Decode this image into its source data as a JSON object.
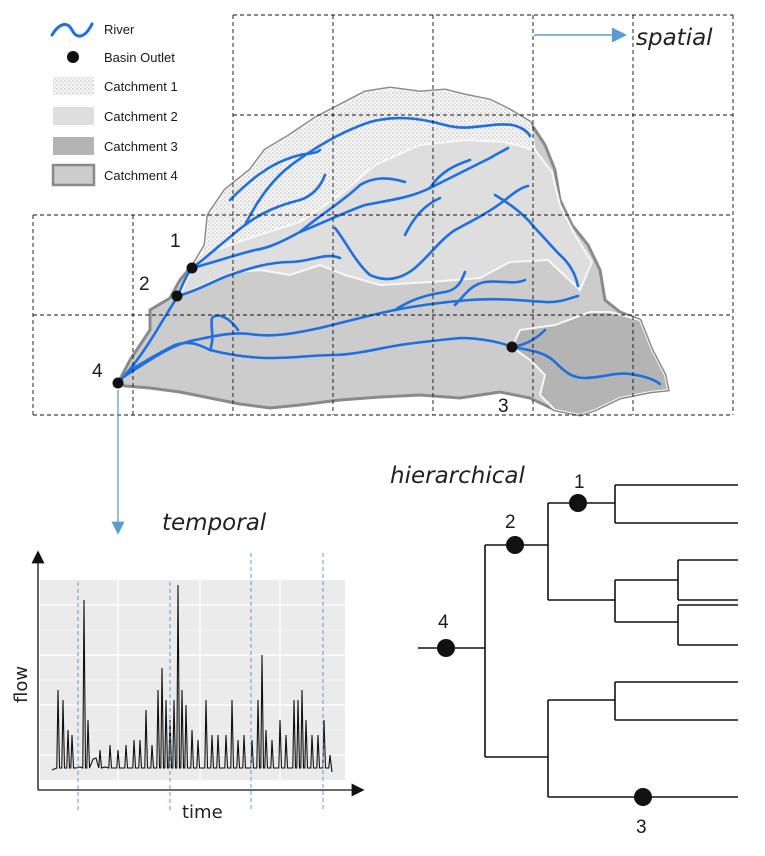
{
  "legend": {
    "items": [
      {
        "label": "River",
        "icon": "river-icon"
      },
      {
        "label": "Basin Outlet",
        "icon": "outlet-dot-icon"
      },
      {
        "label": "Catchment 1",
        "icon": "stipple-swatch-icon"
      },
      {
        "label": "Catchment 2",
        "icon": "light-grey-swatch-icon"
      },
      {
        "label": "Catchment 3",
        "icon": "dark-grey-swatch-icon"
      },
      {
        "label": "Catchment 4",
        "icon": "outlined-grey-swatch-icon"
      }
    ]
  },
  "labels": {
    "spatial": "spatial",
    "temporal": "temporal",
    "hierarchical": "hierarchical"
  },
  "map_outlets": [
    "1",
    "2",
    "3",
    "4"
  ],
  "tree_nodes": [
    "1",
    "2",
    "3",
    "4"
  ],
  "timeseries": {
    "ylabel": "flow",
    "xlabel": "time"
  },
  "colors": {
    "river": "#1e6fe0",
    "catchment1": "#f4f4f4",
    "catchment2": "#dedede",
    "catchment3": "#b4b4b4",
    "catchment4": "#cccccc",
    "catchment_outline": "#8a8a8a",
    "plot_bg": "#ebebeb",
    "arrow_blue": "#5b9bd5"
  }
}
